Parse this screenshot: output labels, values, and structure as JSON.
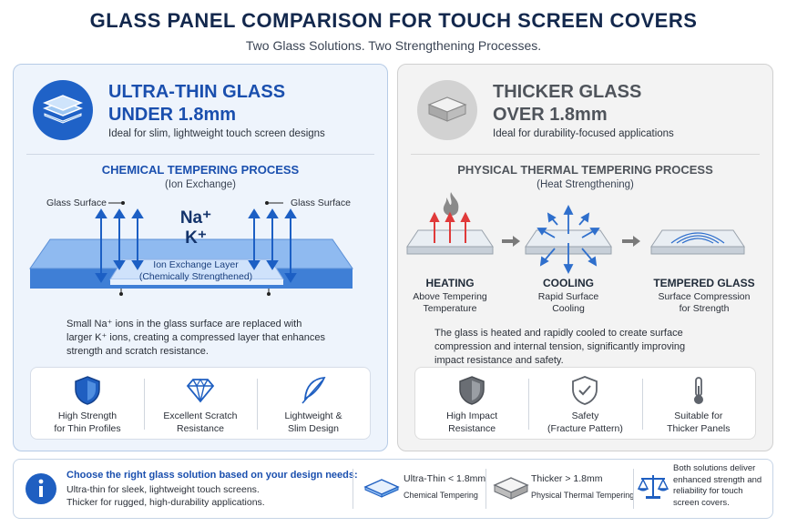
{
  "header": {
    "title": "GLASS PANEL COMPARISON FOR TOUCH SCREEN COVERS",
    "subtitle": "Two Glass Solutions. Two Strengthening Processes."
  },
  "colors": {
    "blue": "#1f5fc1",
    "dark_blue": "#1a4aa0",
    "grey": "#5e636b",
    "red": "#e03a3a"
  },
  "left_panel": {
    "title_line1": "ULTRA-THIN GLASS",
    "title_line2": "UNDER 1.8mm",
    "description": "Ideal for slim, lightweight touch screen designs",
    "process_title": "CHEMICAL TEMPERING PROCESS",
    "process_subtitle": "(Ion Exchange)",
    "label_surface_left": "Glass Surface",
    "label_surface_right": "Glass Surface",
    "na_label": "Na⁺",
    "k_label": "K⁺",
    "layer_label_1": "Ion Exchange Layer",
    "layer_label_2": "(Chemically Strengthened)",
    "paragraph": [
      "Small Na⁺ ions in the glass surface are replaced with",
      "larger K⁺ ions, creating a compressed layer that enhances",
      "strength and scratch resistance."
    ],
    "features": [
      {
        "icon": "shield-icon",
        "line1": "High Strength",
        "line2": "for Thin Profiles"
      },
      {
        "icon": "diamond-icon",
        "line1": "Excellent Scratch",
        "line2": "Resistance"
      },
      {
        "icon": "feather-icon",
        "line1": "Lightweight &",
        "line2": "Slim Design"
      }
    ]
  },
  "right_panel": {
    "title_line1": "THICKER GLASS",
    "title_line2": "OVER 1.8mm",
    "description": "Ideal for durability-focused applications",
    "process_title": "PHYSICAL THERMAL TEMPERING PROCESS",
    "process_subtitle": "(Heat Strengthening)",
    "steps": [
      {
        "title": "HEATING",
        "line1": "Above Tempering",
        "line2": "Temperature"
      },
      {
        "title": "COOLING",
        "line1": "Rapid Surface",
        "line2": "Cooling"
      },
      {
        "title": "TEMPERED GLASS",
        "line1": "Surface Compression",
        "line2": "for Strength"
      }
    ],
    "paragraph": [
      "The glass is heated and rapidly cooled to create surface",
      "compression and internal tension, significantly improving",
      "impact resistance and safety."
    ],
    "features": [
      {
        "icon": "shield-check-icon",
        "line1": "High Impact",
        "line2": "Resistance"
      },
      {
        "icon": "safety-shield-icon",
        "line1": "Safety",
        "line2": "(Fracture Pattern)"
      },
      {
        "icon": "thermometer-icon",
        "line1": "Suitable for",
        "line2": "Thicker Panels"
      }
    ]
  },
  "bottom": {
    "headline": "Choose the right glass solution based on your design needs:",
    "line1": "Ultra-thin for sleek, lightweight touch screens.",
    "line2": "Thicker for rugged, high-durability applications.",
    "option1_title": "Ultra-Thin < 1.8mm",
    "option1_sub": "Chemical Tempering",
    "option2_title": "Thicker > 1.8mm",
    "option2_sub": "Physical Thermal Tempering",
    "summary": [
      "Both solutions deliver",
      "enhanced strength and",
      "reliability for touch",
      "screen covers."
    ]
  }
}
